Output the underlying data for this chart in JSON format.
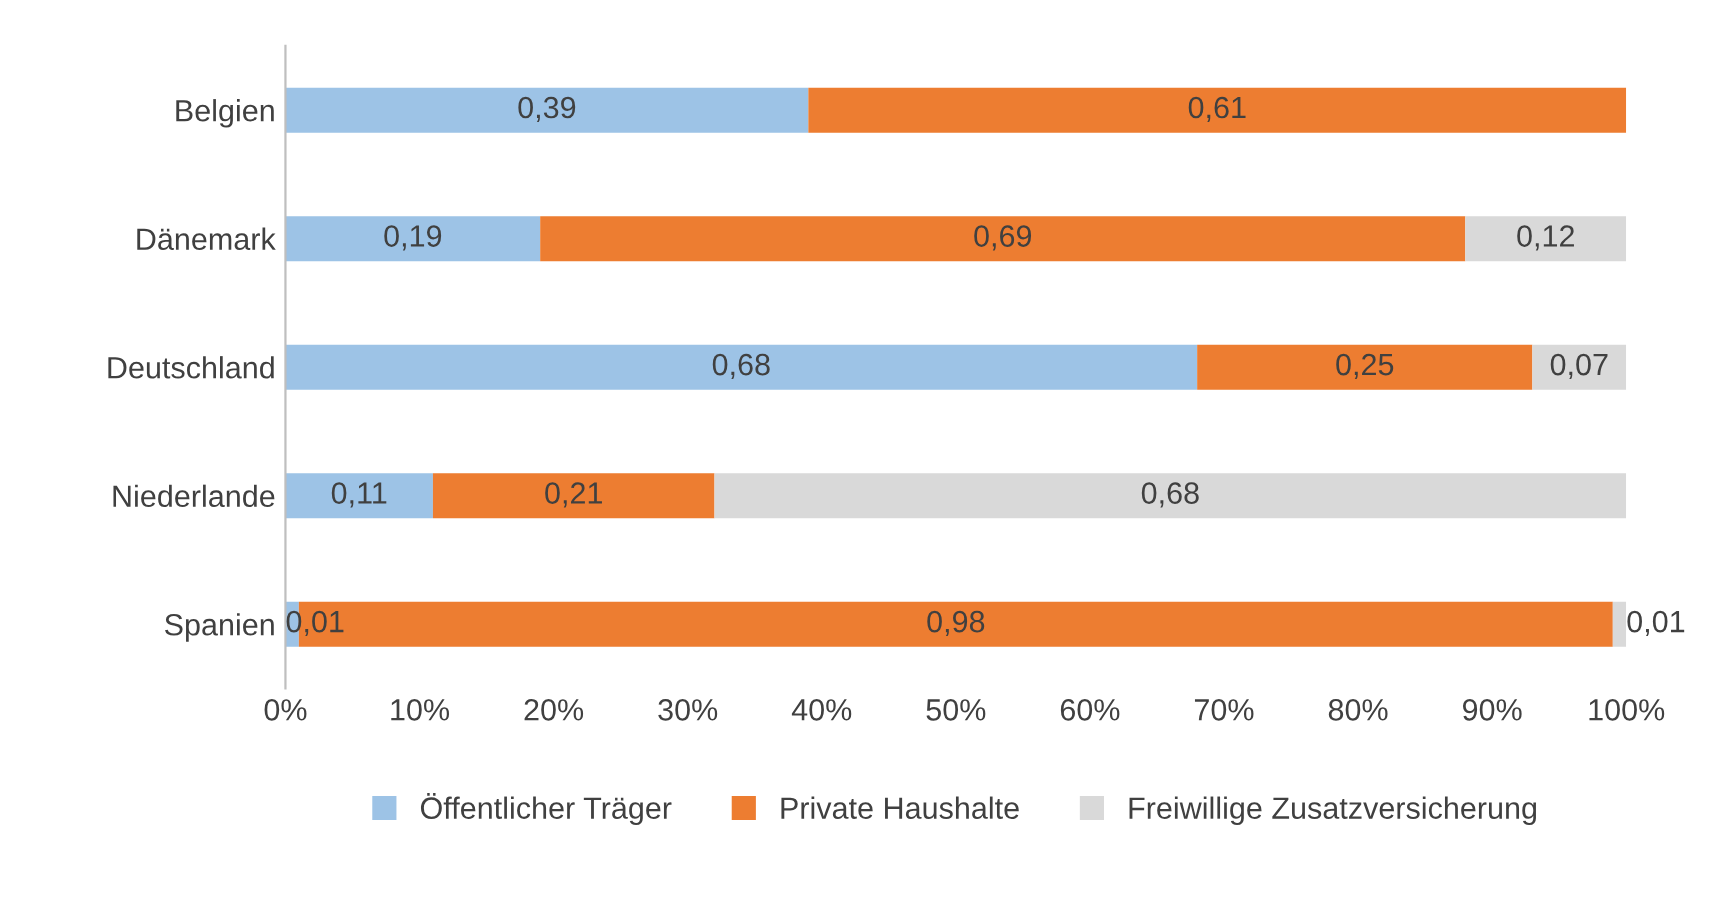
{
  "chart_data": {
    "type": "bar",
    "orientation": "horizontal",
    "stacked": true,
    "categories": [
      "Belgien",
      "Dänemark",
      "Deutschland",
      "Niederlande",
      "Spanien"
    ],
    "series": [
      {
        "name": "Öffentlicher Träger",
        "color": "#9dc3e6",
        "values": [
          0.39,
          0.19,
          0.68,
          0.11,
          0.01
        ],
        "value_labels": [
          "0,39",
          "0,19",
          "0,68",
          "0,11",
          "0,01"
        ]
      },
      {
        "name": "Private Haushalte",
        "color": "#ed7d31",
        "values": [
          0.61,
          0.69,
          0.25,
          0.21,
          0.98
        ],
        "value_labels": [
          "0,61",
          "0,69",
          "0,25",
          "0,21",
          "0,98"
        ]
      },
      {
        "name": "Freiwillige Zusatzversicherung",
        "color": "#d9d9d9",
        "values": [
          null,
          0.12,
          0.07,
          0.68,
          0.01
        ],
        "value_labels": [
          null,
          "0,12",
          "0,07",
          "0,68",
          "0,01"
        ]
      }
    ],
    "xlim": [
      0,
      1
    ],
    "xticks": [
      {
        "value": 0,
        "label": "0%"
      },
      {
        "value": 0.1,
        "label": "10%"
      },
      {
        "value": 0.2,
        "label": "20%"
      },
      {
        "value": 0.3,
        "label": "30%"
      },
      {
        "value": 0.4,
        "label": "40%"
      },
      {
        "value": 0.5,
        "label": "50%"
      },
      {
        "value": 0.6,
        "label": "60%"
      },
      {
        "value": 0.7,
        "label": "70%"
      },
      {
        "value": 0.8,
        "label": "80%"
      },
      {
        "value": 0.9,
        "label": "90%"
      },
      {
        "value": 1,
        "label": "100%"
      }
    ],
    "legend": "bottom",
    "grid": false
  }
}
